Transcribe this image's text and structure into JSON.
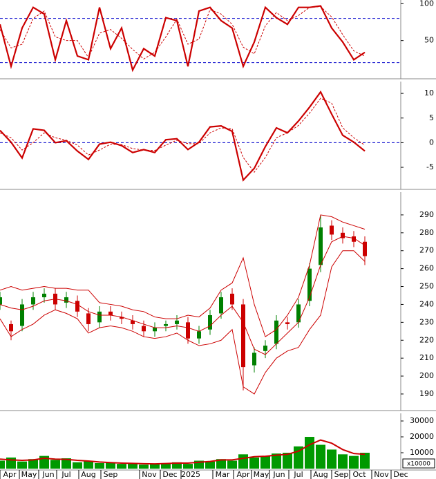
{
  "chart_data": [
    {
      "type": "line",
      "xlim": [
        0,
        145
      ],
      "ylim": [
        0,
        105
      ],
      "yticks": [
        50,
        100
      ],
      "x": [
        0,
        4,
        8,
        12,
        16,
        20,
        24,
        28,
        32,
        36,
        40,
        44,
        48,
        52,
        56,
        60,
        64,
        68,
        72,
        76,
        80,
        84,
        88,
        92,
        96,
        100,
        104,
        108,
        112,
        116,
        120,
        124,
        128,
        132
      ],
      "hlines": [
        80,
        20
      ],
      "hline_color": "#0000cc",
      "series": [
        {
          "color": "#cc0000",
          "dashed": false,
          "values": [
            72,
            15,
            67,
            95,
            86,
            24,
            77,
            29,
            24,
            95,
            39,
            67,
            10,
            39,
            29,
            81,
            77,
            15,
            90,
            95,
            77,
            67,
            15,
            48,
            95,
            81,
            72,
            95,
            95,
            97,
            67,
            48,
            24,
            34
          ]
        },
        {
          "color": "#cc0000",
          "dashed": true,
          "values": [
            65,
            40,
            45,
            80,
            90,
            55,
            50,
            50,
            27,
            60,
            65,
            53,
            38,
            25,
            34,
            55,
            79,
            45,
            52,
            92,
            86,
            72,
            41,
            32,
            70,
            88,
            77,
            84,
            95,
            96,
            82,
            58,
            36,
            29
          ]
        }
      ]
    },
    {
      "type": "line",
      "xlim": [
        0,
        145
      ],
      "ylim": [
        -9.2,
        12.4
      ],
      "yticks": [
        -5,
        0,
        5,
        10
      ],
      "x": [
        0,
        4,
        8,
        12,
        16,
        20,
        24,
        28,
        32,
        36,
        40,
        44,
        48,
        52,
        56,
        60,
        64,
        68,
        72,
        76,
        80,
        84,
        88,
        92,
        96,
        100,
        104,
        108,
        112,
        116,
        120,
        124,
        128,
        132
      ],
      "hlines": [
        0
      ],
      "hline_color": "#0000cc",
      "series": [
        {
          "color": "#cc0000",
          "dashed": false,
          "values": [
            2.5,
            0.1,
            -3.1,
            2.8,
            2.5,
            0,
            0.4,
            -1.7,
            -3.4,
            -0.3,
            0.1,
            -0.6,
            -2,
            -1.4,
            -2,
            0.6,
            0.8,
            -1.4,
            0.1,
            3.2,
            3.4,
            2.3,
            -7.6,
            -5.2,
            -0.8,
            3,
            2,
            4.4,
            7.2,
            10.3,
            5.8,
            1.5,
            0.1,
            -1.7
          ]
        },
        {
          "color": "#cc0000",
          "dashed": true,
          "values": [
            2,
            1,
            -1.5,
            0,
            2,
            1,
            0.5,
            -0.5,
            -2.5,
            -1.5,
            -0.3,
            -0.4,
            -1.2,
            -1.5,
            -1.6,
            -0.5,
            0.5,
            -0.2,
            -0.2,
            2,
            3,
            2.8,
            -3,
            -6,
            -3,
            1,
            2,
            3.5,
            6,
            9,
            8,
            3,
            1,
            -0.5
          ]
        }
      ]
    },
    {
      "type": "candlestick",
      "xlim": [
        0,
        145
      ],
      "ylim": [
        181.5,
        302.7
      ],
      "yticks": [
        190,
        200,
        210,
        220,
        230,
        240,
        250,
        260,
        270,
        280,
        290
      ],
      "x": [
        0,
        4,
        8,
        12,
        16,
        20,
        24,
        28,
        32,
        36,
        40,
        44,
        48,
        52,
        56,
        60,
        64,
        68,
        72,
        76,
        80,
        84,
        88,
        92,
        96,
        100,
        104,
        108,
        112,
        116,
        120,
        124,
        128,
        132
      ],
      "up_color": "#008000",
      "down_color": "#cc0000",
      "open": [
        240,
        229,
        228,
        240,
        244,
        246,
        241,
        242,
        235,
        230,
        236,
        233,
        231,
        228,
        225,
        228,
        229,
        230,
        221,
        226,
        235,
        246,
        240,
        206,
        214,
        218,
        230,
        230,
        242,
        262,
        284,
        280,
        278,
        275
      ],
      "high": [
        247,
        231,
        243,
        247,
        249,
        249,
        247,
        245,
        238,
        239,
        239,
        236,
        234,
        231,
        230,
        231,
        234,
        233,
        228,
        237,
        247,
        249,
        243,
        216,
        220,
        234,
        233,
        243,
        263,
        290,
        287,
        283,
        281,
        278
      ],
      "low": [
        237,
        220,
        225,
        237,
        241,
        237,
        238,
        233,
        225,
        227,
        231,
        229,
        226,
        222,
        222,
        225,
        226,
        218,
        218,
        223,
        232,
        237,
        192,
        202,
        210,
        215,
        226,
        227,
        239,
        258,
        276,
        274,
        272,
        262
      ],
      "close": [
        244,
        225,
        240,
        244,
        246,
        240,
        244,
        236,
        229,
        236,
        234,
        232,
        229,
        225,
        227,
        229,
        231,
        221,
        225,
        234,
        244,
        240,
        205,
        213,
        217,
        231,
        229,
        240,
        260,
        283,
        279,
        277,
        275,
        267
      ],
      "series": [
        {
          "color": "#cc0000",
          "values": [
            248,
            250,
            248,
            249,
            250,
            249,
            249,
            248,
            248,
            241,
            240,
            239,
            237,
            236,
            233,
            232,
            232,
            234,
            233,
            238,
            248,
            252,
            266,
            240,
            222,
            226,
            234,
            244,
            262,
            290,
            289,
            286,
            284,
            282
          ]
        },
        {
          "color": "#cc0000",
          "values": [
            240,
            238,
            237,
            239,
            242,
            243,
            242,
            240,
            236,
            234,
            234,
            233,
            231,
            229,
            227,
            227,
            228,
            227,
            225,
            228,
            234,
            239,
            230,
            215,
            212,
            218,
            224,
            230,
            244,
            262,
            275,
            278,
            277,
            273
          ]
        },
        {
          "color": "#cc0000",
          "values": [
            232,
            222,
            226,
            229,
            234,
            237,
            235,
            232,
            224,
            227,
            228,
            227,
            225,
            222,
            221,
            222,
            224,
            220,
            217,
            218,
            220,
            226,
            194,
            190,
            202,
            210,
            214,
            216,
            226,
            234,
            261,
            270,
            270,
            264
          ]
        }
      ]
    },
    {
      "type": "bar",
      "xlim": [
        0,
        145
      ],
      "ylim": [
        0,
        34800
      ],
      "yticks": [
        10000,
        20000,
        30000
      ],
      "unit_label": "x10000",
      "x": [
        0,
        4,
        8,
        12,
        16,
        20,
        24,
        28,
        32,
        36,
        40,
        44,
        48,
        52,
        56,
        60,
        64,
        68,
        72,
        76,
        80,
        84,
        88,
        92,
        96,
        100,
        104,
        108,
        112,
        116,
        120,
        124,
        128,
        132
      ],
      "values": [
        5000,
        7000,
        4500,
        6000,
        8000,
        5500,
        6500,
        4000,
        5000,
        3500,
        4000,
        3000,
        3500,
        2500,
        3000,
        3500,
        4000,
        3000,
        5000,
        4500,
        6000,
        5000,
        9000,
        7000,
        8000,
        9500,
        10000,
        14000,
        20000,
        15000,
        12000,
        9000,
        8000,
        10000
      ],
      "color": "#009900",
      "series": [
        {
          "color": "#cc0000",
          "values": [
            6000,
            5500,
            5200,
            5500,
            6500,
            6000,
            5800,
            5200,
            4800,
            4200,
            3800,
            3500,
            3300,
            3100,
            3000,
            3200,
            3500,
            3500,
            4000,
            4500,
            5500,
            5500,
            6500,
            7500,
            7800,
            8500,
            9000,
            11000,
            15000,
            18000,
            16000,
            12000,
            9500,
            9000
          ]
        }
      ],
      "xticks": [
        {
          "value": 3.5,
          "label": "Apr"
        },
        {
          "value": 10.5,
          "label": "May"
        },
        {
          "value": 17.5,
          "label": "Jun"
        },
        {
          "value": 24,
          "label": "Jul"
        },
        {
          "value": 32,
          "label": "Aug"
        },
        {
          "value": 40,
          "label": "Sep"
        },
        {
          "value": 54,
          "label": "Nov"
        },
        {
          "value": 61.5,
          "label": "Dec"
        },
        {
          "value": 69,
          "label": "2025"
        },
        {
          "value": 80.5,
          "label": "Mar"
        },
        {
          "value": 88,
          "label": "Apr"
        },
        {
          "value": 94.5,
          "label": "May"
        },
        {
          "value": 101,
          "label": "Jun"
        },
        {
          "value": 108,
          "label": "Jul"
        },
        {
          "value": 116,
          "label": "Aug"
        },
        {
          "value": 123.5,
          "label": "Sep"
        },
        {
          "value": 130,
          "label": "Oct"
        },
        {
          "value": 138,
          "label": "Nov"
        },
        {
          "value": 145,
          "label": "Dec"
        }
      ]
    }
  ]
}
